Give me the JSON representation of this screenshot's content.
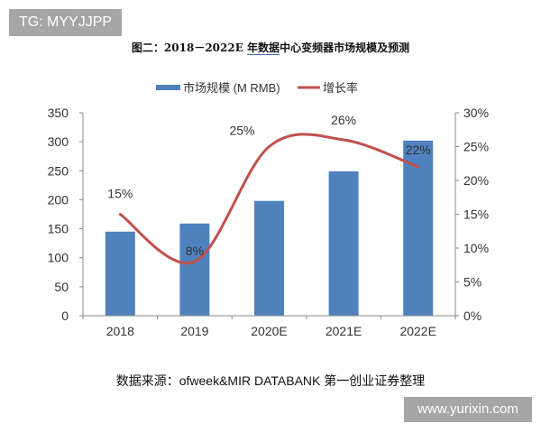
{
  "watermark_top": "TG: MYYJJPP",
  "watermark_bottom": "www.yurixin.com",
  "title_prefix": "图二：2018－2022E ",
  "title_underlined": "年数据",
  "title_suffix": "中心变频器市场规模及预测",
  "source": "数据来源：ofweek&MIR DATABANK 第一创业证券整理",
  "chart_data": {
    "type": "bar+line",
    "categories": [
      "2018",
      "2019",
      "2020E",
      "2021E",
      "2022E"
    ],
    "series": [
      {
        "name": "市场规模（M RMB）",
        "type": "bar",
        "axis": "left",
        "color": "#4f81bd",
        "values": [
          145,
          159,
          198,
          249,
          302
        ]
      },
      {
        "name": "增长率",
        "type": "line",
        "axis": "right",
        "color": "#c0504d",
        "smooth": true,
        "values": [
          15,
          8,
          25,
          26,
          22
        ],
        "labels": [
          "15%",
          "8%",
          "25%",
          "26%",
          "22%"
        ]
      }
    ],
    "left_axis": {
      "ylim": [
        0,
        350
      ],
      "ticks": [
        "0",
        "50",
        "100",
        "150",
        "200",
        "250",
        "300",
        "350"
      ]
    },
    "right_axis": {
      "ylim": [
        0,
        30
      ],
      "ticks": [
        "0%",
        "5%",
        "10%",
        "15%",
        "20%",
        "25%",
        "30%"
      ]
    },
    "legend_position": "top",
    "grid": false
  }
}
